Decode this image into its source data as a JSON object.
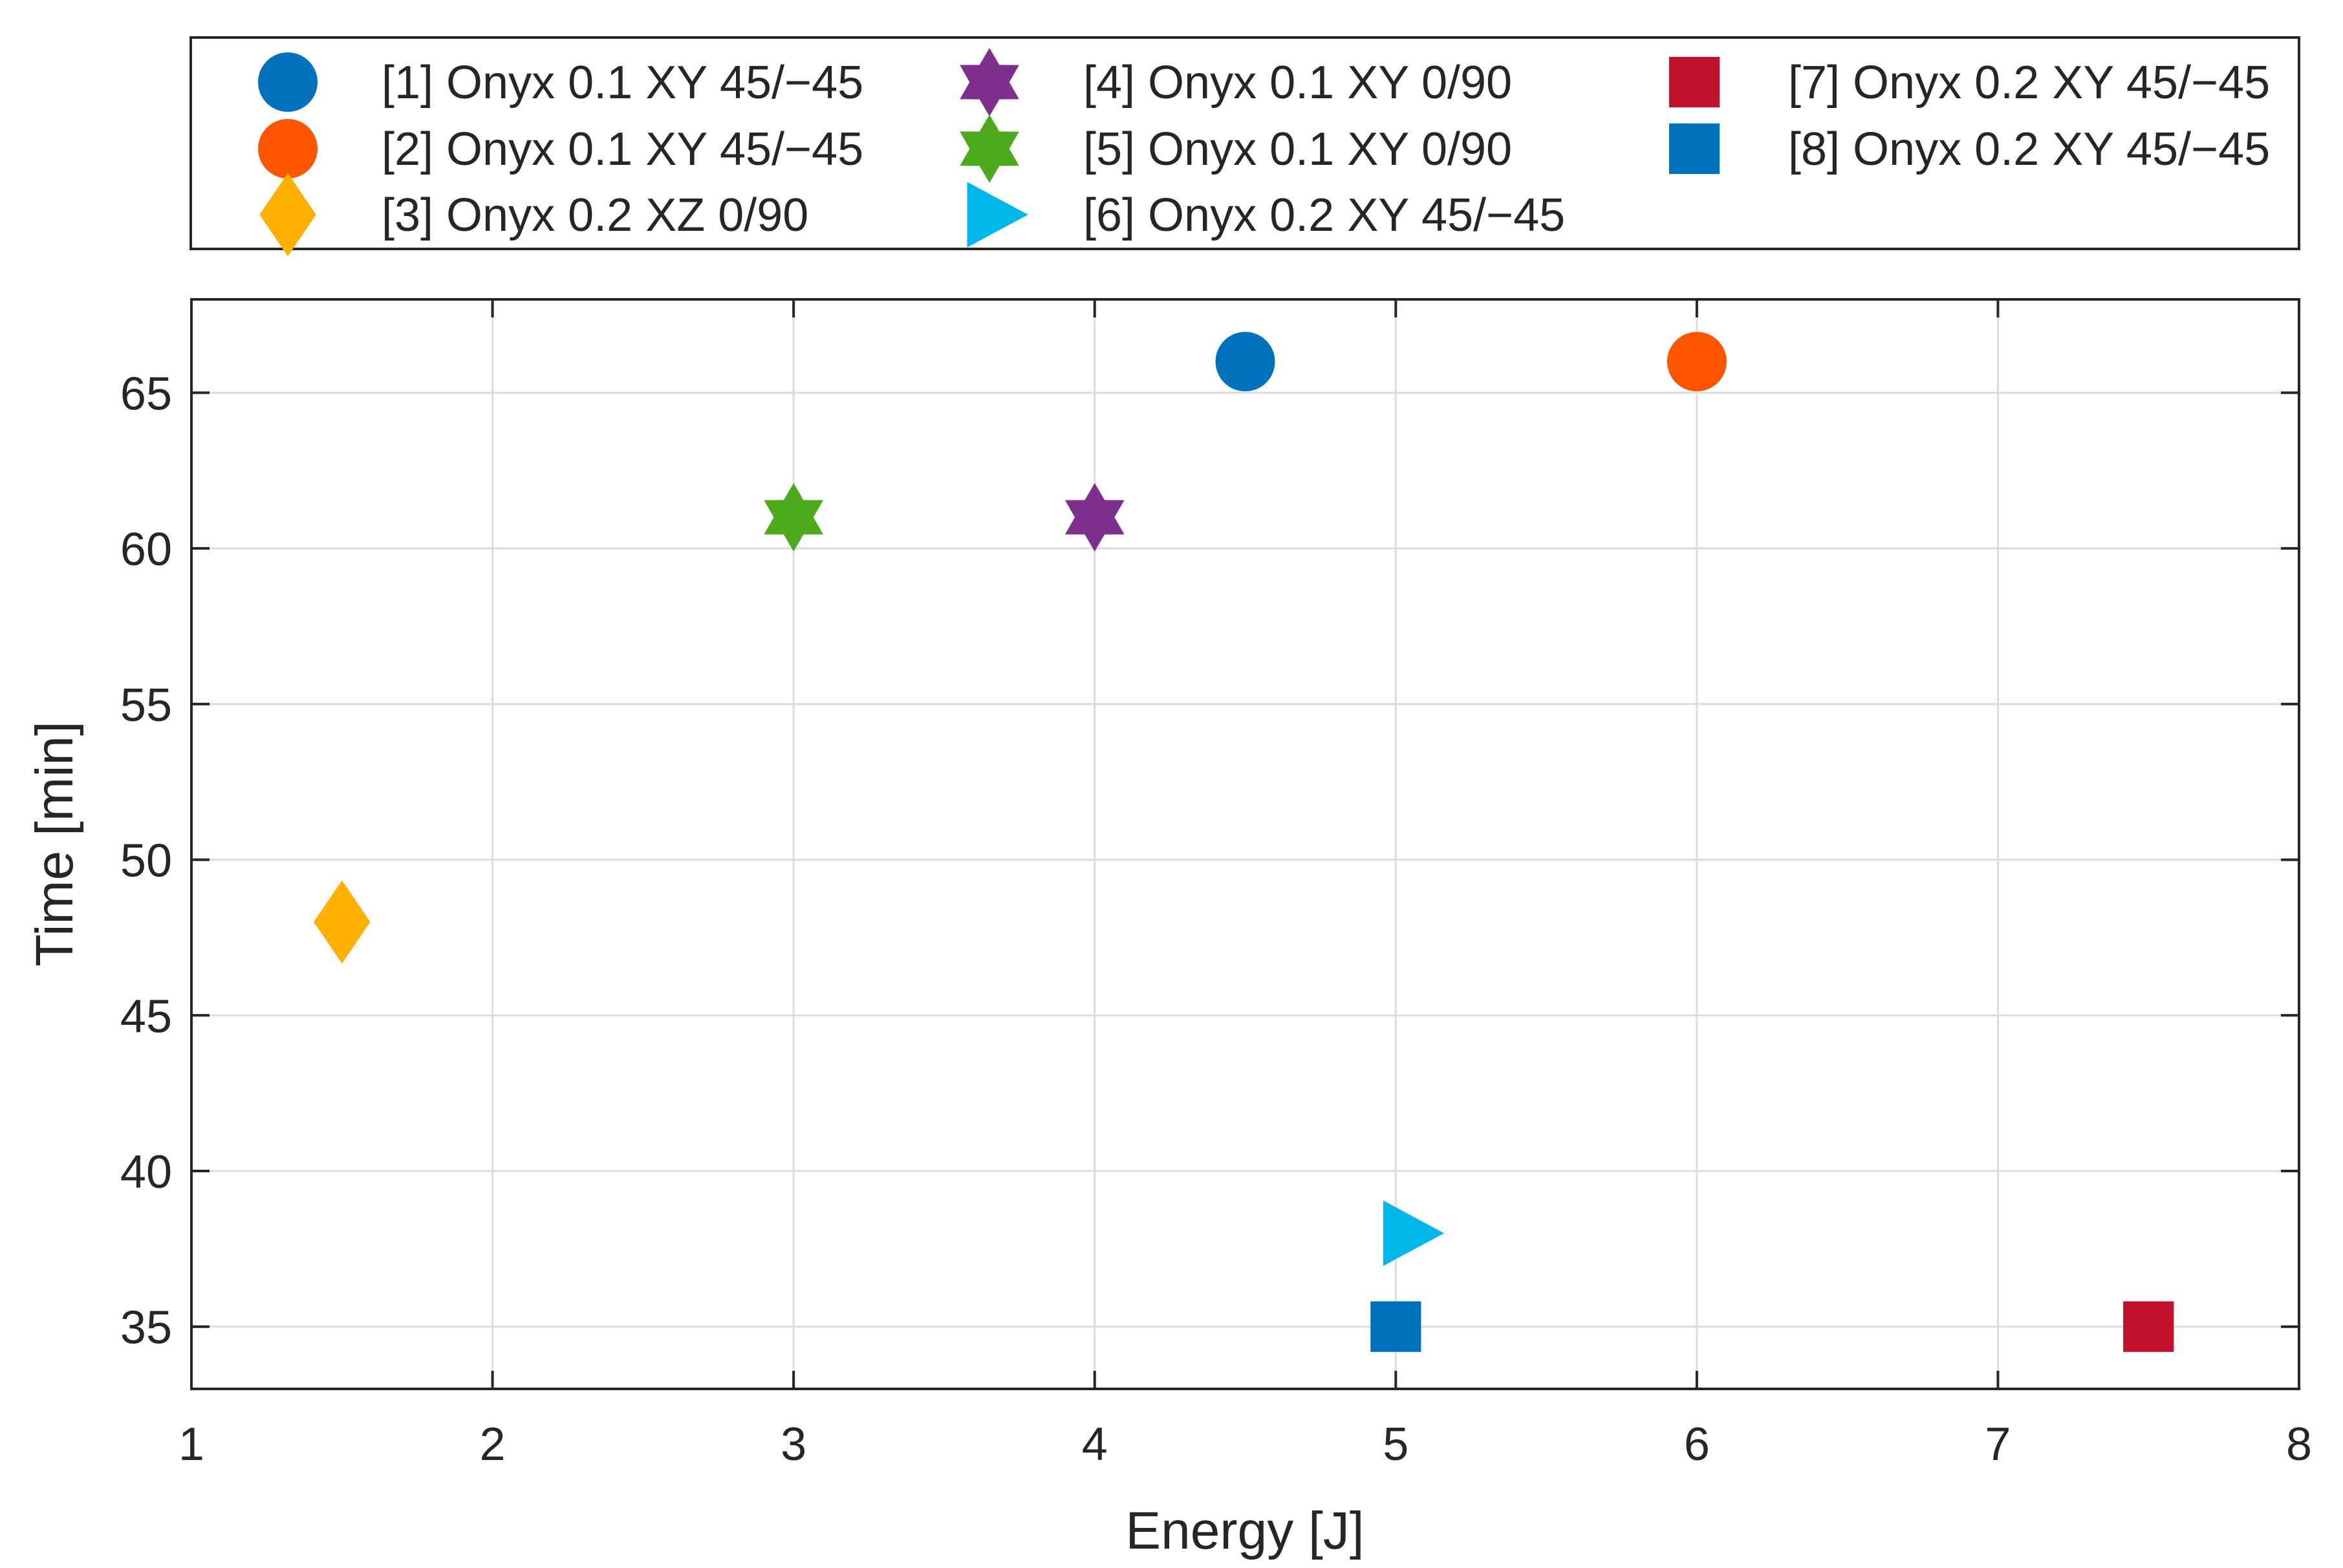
{
  "chart_data": {
    "type": "scatter",
    "title": "",
    "xlabel": "Energy [J]",
    "ylabel": "Time [min]",
    "xlim": [
      1,
      8
    ],
    "ylim": [
      33,
      68
    ],
    "xticks": [
      1,
      2,
      3,
      4,
      5,
      6,
      7,
      8
    ],
    "yticks": [
      35,
      40,
      45,
      50,
      55,
      60,
      65
    ],
    "grid": true,
    "legend_position": "top, outside, 3 columns",
    "series": [
      {
        "name": "[1] Onyx 0.1 XY 45/−45",
        "marker": "circle",
        "color": "#0072BD",
        "x": [
          4.5
        ],
        "y": [
          66
        ]
      },
      {
        "name": "[2] Onyx 0.1 XY 45/−45",
        "marker": "circle",
        "color": "#FF5500",
        "x": [
          6
        ],
        "y": [
          66
        ]
      },
      {
        "name": "[3] Onyx 0.2 XZ 0/90",
        "marker": "diamond",
        "color": "#FFB000",
        "x": [
          1.5
        ],
        "y": [
          48
        ]
      },
      {
        "name": "[4] Onyx 0.1 XY 0/90",
        "marker": "hexagram",
        "color": "#7E2F8E",
        "x": [
          4
        ],
        "y": [
          61
        ]
      },
      {
        "name": "[5] Onyx 0.1 XY 0/90",
        "marker": "hexagram",
        "color": "#4DAA1C",
        "x": [
          3
        ],
        "y": [
          61
        ]
      },
      {
        "name": "[6] Onyx 0.2 XY 45/−45",
        "marker": "triangle-right",
        "color": "#00B7EB",
        "x": [
          5
        ],
        "y": [
          38
        ]
      },
      {
        "name": "[7] Onyx 0.2 XY 45/−45",
        "marker": "square",
        "color": "#C0112E",
        "x": [
          7.5
        ],
        "y": [
          35
        ]
      },
      {
        "name": "[8] Onyx 0.2 XY 45/−45",
        "marker": "square",
        "color": "#0072BD",
        "x": [
          5
        ],
        "y": [
          35
        ]
      }
    ]
  }
}
